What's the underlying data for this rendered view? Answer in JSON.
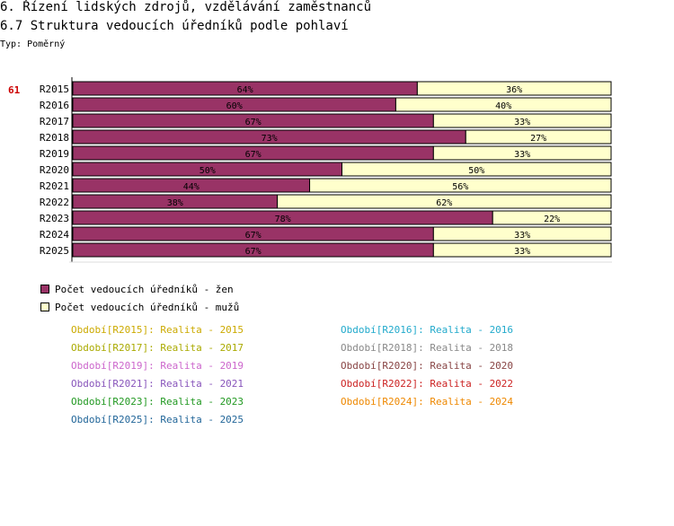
{
  "header": {
    "section": "6. Řízení lidských zdrojů, vzdělávání zaměstnanců",
    "subtitle": "6.7 Struktura vedoucích úředníků podle pohlaví",
    "type_label": "Typ: Poměrný",
    "page_number": "61"
  },
  "colors": {
    "women": "#993366",
    "men": "#ffffcc",
    "axis": "#000000"
  },
  "chart_data": {
    "type": "bar",
    "orientation": "horizontal",
    "stacked": "percent",
    "title": "6.7 Struktura vedoucích úředníků podle pohlaví",
    "categories": [
      "R2015",
      "R2016",
      "R2017",
      "R2018",
      "R2019",
      "R2020",
      "R2021",
      "R2022",
      "R2023",
      "R2024",
      "R2025"
    ],
    "series": [
      {
        "name": "Počet vedoucích úředníků - žen",
        "values": [
          64,
          60,
          67,
          73,
          67,
          50,
          44,
          38,
          78,
          67,
          67
        ]
      },
      {
        "name": "Počet vedoucích úředníků - mužů",
        "values": [
          36,
          40,
          33,
          27,
          33,
          50,
          56,
          62,
          22,
          33,
          33
        ]
      }
    ],
    "value_suffix": "%",
    "xlim": [
      0,
      100
    ],
    "legend_position": "bottom-left"
  },
  "legend": [
    {
      "label": "Počet vedoucích úředníků - žen",
      "color": "#993366"
    },
    {
      "label": "Počet vedoucích úředníků - mužů",
      "color": "#ffffcc"
    }
  ],
  "periods": [
    {
      "label": "Období[R2015]: Realita - 2015",
      "color": "#ccaa00"
    },
    {
      "label": "Období[R2016]: Realita - 2016",
      "color": "#22aacc"
    },
    {
      "label": "Období[R2017]: Realita - 2017",
      "color": "#aaaa00"
    },
    {
      "label": "Období[R2018]: Realita - 2018",
      "color": "#888888"
    },
    {
      "label": "Období[R2019]: Realita - 2019",
      "color": "#cc66cc"
    },
    {
      "label": "Období[R2020]: Realita - 2020",
      "color": "#884444"
    },
    {
      "label": "Období[R2021]: Realita - 2021",
      "color": "#8855bb"
    },
    {
      "label": "Období[R2022]: Realita - 2022",
      "color": "#cc2222"
    },
    {
      "label": "Období[R2023]: Realita - 2023",
      "color": "#229922"
    },
    {
      "label": "Období[R2024]: Realita - 2024",
      "color": "#ee8800"
    },
    {
      "label": "Období[R2025]: Realita - 2025",
      "color": "#226699"
    }
  ]
}
